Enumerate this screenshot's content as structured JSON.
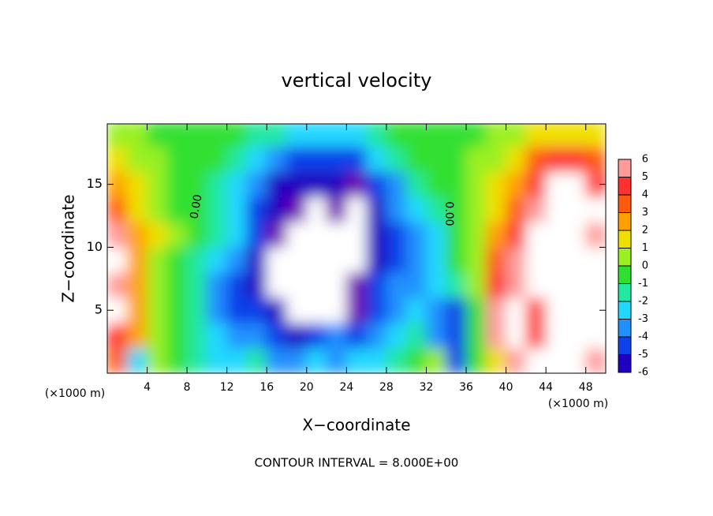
{
  "chart_data": {
    "type": "heatmap",
    "title": "vertical velocity",
    "x_label": "X−coordinate",
    "y_label": "Z−coordinate",
    "x_unit": "(×1000 m)",
    "annotation": "CONTOUR INTERVAL = 8.000E+00",
    "contour_label": "0.00",
    "xlim": [
      0,
      50
    ],
    "ylim": [
      0,
      19.8
    ],
    "xticks": [
      4,
      8,
      12,
      16,
      20,
      24,
      28,
      32,
      36,
      40,
      44,
      48
    ],
    "yticks": [
      5,
      10,
      15
    ],
    "x": [
      1,
      3,
      5,
      7,
      9,
      11,
      13,
      15,
      17,
      19,
      21,
      23,
      25,
      27,
      29,
      31,
      33,
      35,
      37,
      39,
      41,
      43,
      45,
      47,
      49
    ],
    "y": [
      1,
      3,
      5,
      7,
      9,
      11,
      13,
      15,
      17,
      19
    ],
    "z": [
      [
        4,
        -2,
        1,
        0,
        -1,
        -2,
        -2,
        -1,
        -3,
        -3,
        -2,
        -3,
        -2,
        -2,
        -1,
        0,
        1,
        -4,
        0,
        2,
        6,
        7,
        8,
        7,
        6
      ],
      [
        5,
        3,
        1,
        0,
        -1,
        -2,
        -3,
        -3,
        -4,
        -5,
        -4,
        -3,
        -4,
        -3,
        -2,
        -1,
        -3,
        -4,
        0,
        6,
        7,
        5,
        7,
        8,
        7
      ],
      [
        7,
        3,
        1,
        0,
        -1,
        -3,
        -4,
        -4,
        -5,
        -7,
        -8,
        -7,
        -6,
        -4,
        -3,
        -2,
        -3,
        -4,
        0,
        6,
        7,
        5,
        8,
        9,
        8
      ],
      [
        6,
        3,
        1,
        0,
        -1,
        -3,
        -4,
        -5,
        -7,
        -8,
        -7,
        -7,
        -6,
        -4,
        -3,
        -3,
        -2,
        -1,
        1,
        5,
        6,
        8,
        9,
        9,
        8
      ],
      [
        7,
        3,
        1,
        0,
        -1,
        -2,
        -3,
        -5,
        -7,
        -7,
        -8,
        -7,
        -8,
        -5,
        -4,
        -3,
        -2,
        0,
        1,
        4,
        6,
        8,
        9,
        9,
        7
      ],
      [
        6,
        3,
        2,
        1,
        0,
        -1,
        -2,
        -4,
        -6,
        -8,
        -9,
        -8,
        -8,
        -5,
        -4,
        -3,
        -2,
        0,
        1,
        3,
        5,
        7,
        9,
        9,
        6
      ],
      [
        4,
        2,
        1,
        0,
        0,
        -1,
        -2,
        -4,
        -5,
        -6,
        -7,
        -6,
        -7,
        -5,
        -3,
        -2,
        -1,
        0,
        1,
        2,
        4,
        6,
        8,
        8,
        7
      ],
      [
        3,
        2,
        1,
        0,
        0,
        -1,
        -2,
        -3,
        -5,
        -5,
        -5,
        -5,
        -6,
        -4,
        -3,
        -1,
        0,
        0,
        1,
        2,
        3,
        5,
        7,
        7,
        5
      ],
      [
        2,
        1,
        1,
        0,
        0,
        0,
        -1,
        -2,
        -3,
        -4,
        -4,
        -4,
        -4,
        -2,
        -1,
        0,
        0,
        0,
        1,
        1,
        2,
        4,
        5,
        5,
        4
      ],
      [
        1,
        1,
        0,
        0,
        0,
        0,
        0,
        -1,
        -1,
        -2,
        -2,
        -2,
        -2,
        -1,
        0,
        0,
        0,
        0,
        0,
        1,
        1,
        2,
        2,
        2,
        2
      ]
    ],
    "colorbar_ticks": [
      6,
      5,
      4,
      3,
      2,
      1,
      0,
      -1,
      -2,
      -3,
      -4,
      -5,
      -6
    ],
    "colorscale": [
      "#ff9a9a",
      "#ff3030",
      "#ff5a10",
      "#ffa000",
      "#f0e000",
      "#9af020",
      "#30e030",
      "#20e8a0",
      "#20d8ff",
      "#2090ff",
      "#1040e8",
      "#2000c0",
      "#7000b0"
    ],
    "out_of_range_color": "#ffffff"
  }
}
